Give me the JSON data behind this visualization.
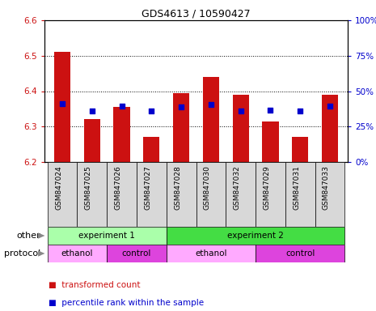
{
  "title": "GDS4613 / 10590427",
  "samples": [
    "GSM847024",
    "GSM847025",
    "GSM847026",
    "GSM847027",
    "GSM847028",
    "GSM847030",
    "GSM847032",
    "GSM847029",
    "GSM847031",
    "GSM847033"
  ],
  "bar_bottoms": [
    6.2,
    6.2,
    6.2,
    6.2,
    6.2,
    6.2,
    6.2,
    6.2,
    6.2,
    6.2
  ],
  "bar_tops": [
    6.51,
    6.32,
    6.355,
    6.27,
    6.395,
    6.44,
    6.39,
    6.315,
    6.27,
    6.39
  ],
  "percentile_values": [
    6.365,
    6.345,
    6.357,
    6.345,
    6.355,
    6.362,
    6.345,
    6.347,
    6.345,
    6.358
  ],
  "ylim": [
    6.2,
    6.6
  ],
  "yticks_left": [
    6.2,
    6.3,
    6.4,
    6.5,
    6.6
  ],
  "yticks_right": [
    0,
    25,
    50,
    75,
    100
  ],
  "bar_color": "#cc1111",
  "dot_color": "#0000cc",
  "other_row": [
    {
      "label": "experiment 1",
      "start": 0,
      "end": 4,
      "color": "#aaffaa"
    },
    {
      "label": "experiment 2",
      "start": 4,
      "end": 10,
      "color": "#44dd44"
    }
  ],
  "protocol_row": [
    {
      "label": "ethanol",
      "start": 0,
      "end": 2,
      "color": "#ffaaff"
    },
    {
      "label": "control",
      "start": 2,
      "end": 4,
      "color": "#dd44dd"
    },
    {
      "label": "ethanol",
      "start": 4,
      "end": 7,
      "color": "#ffaaff"
    },
    {
      "label": "control",
      "start": 7,
      "end": 10,
      "color": "#dd44dd"
    }
  ],
  "legend_items": [
    {
      "label": "transformed count",
      "color": "#cc1111"
    },
    {
      "label": "percentile rank within the sample",
      "color": "#0000cc"
    }
  ],
  "left_label_color": "#cc1111",
  "right_label_color": "#0000cc",
  "other_label": "other",
  "protocol_label": "protocol",
  "grid_dotted_at": [
    6.3,
    6.4,
    6.5
  ],
  "sample_bg": "#d8d8d8"
}
